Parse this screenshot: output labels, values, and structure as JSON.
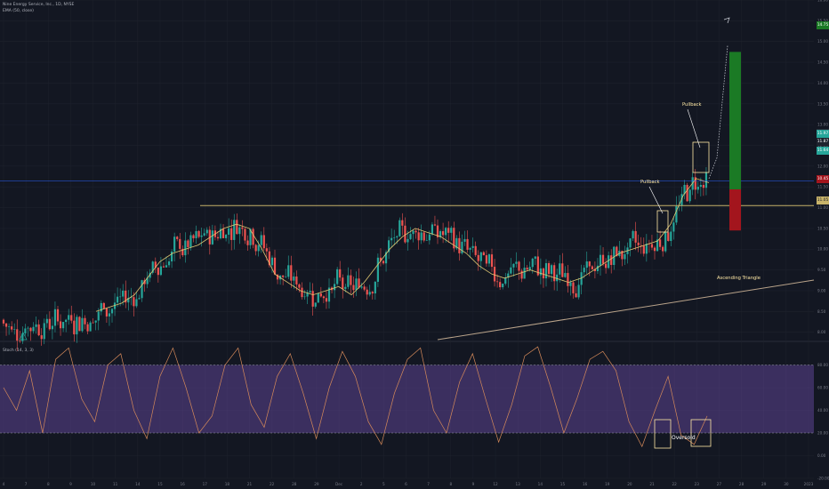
{
  "header": {
    "symbol_line": "Nine Energy Service, Inc., 1D, NYSE",
    "indicator_line": "EMA (50, close)",
    "osc_line": "Stoch (14, 3, 3)"
  },
  "price_tags": {
    "price_label": "Price",
    "target": "14.75",
    "last": "11.97",
    "open": "11.87",
    "current": "11.64",
    "stop": "10.45",
    "level": "11.05"
  },
  "colors": {
    "background": "#131722",
    "grid": "#1e222d",
    "up_candle": "#26a69a",
    "down_candle": "#ef5350",
    "ema": "#e0c872",
    "resistance": "#c8b36a",
    "support": "#b9a38a",
    "stoch_line": "#d68a5a",
    "stoch_band": "#7e57c2",
    "current_price_line": "#2962ff",
    "target_zone": "#1b7a25",
    "stop_zone": "#a3151d",
    "annotation": "#ffe9a6"
  },
  "annotations": {
    "pullback_1": "Pullback",
    "pullback_2": "Pullback",
    "triangle": "Ascending Triangle",
    "oversold": "Oversold"
  },
  "chart_data": [
    {
      "type": "candlestick",
      "title": "Nine Energy Service, Inc., 1D, NYSE",
      "ylim": [
        7.8,
        16.0
      ],
      "y_ticks": [
        "16.00",
        "15.50",
        "15.00",
        "14.50",
        "14.00",
        "13.50",
        "13.00",
        "12.50",
        "12.00",
        "11.50",
        "11.00",
        "10.50",
        "10.00",
        "9.50",
        "9.00",
        "8.50",
        "8.00"
      ],
      "x_ticks": [
        "4",
        "7",
        "8",
        "9",
        "10",
        "11",
        "14",
        "15",
        "16",
        "17",
        "18",
        "21",
        "22",
        "28",
        "29",
        "Dec",
        "2",
        "5",
        "6",
        "7",
        "8",
        "9",
        "12",
        "13",
        "14",
        "15",
        "16",
        "19",
        "20",
        "21",
        "22",
        "23",
        "27",
        "28",
        "29",
        "30",
        "2023"
      ],
      "series": [
        {
          "name": "EMA (50, close)",
          "values": [
            8.5,
            8.6,
            8.7,
            8.9,
            9.3,
            9.7,
            9.9,
            10.0,
            10.1,
            10.3,
            10.5,
            10.6,
            10.5,
            10.0,
            9.4,
            9.2,
            9.0,
            8.9,
            9.0,
            9.1,
            8.9,
            9.2,
            9.6,
            10.0,
            10.3,
            10.5,
            10.4,
            10.3,
            10.1,
            9.9,
            9.6,
            9.4,
            9.3,
            9.4,
            9.5,
            9.4,
            9.3,
            9.2,
            9.3,
            9.5,
            9.7,
            9.9,
            10.0,
            10.1,
            10.2,
            10.6,
            11.3,
            11.7,
            11.6
          ]
        }
      ],
      "levels": {
        "resistance": 11.05,
        "current_price": 11.64
      },
      "annotations": [
        "Pullback",
        "Pullback",
        "Ascending Triangle"
      ]
    },
    {
      "type": "line",
      "title": "Stoch (14, 3, 3)",
      "ylim": [
        -20,
        100
      ],
      "y_ticks": [
        "80.00",
        "60.00",
        "40.00",
        "20.00",
        "0.00",
        "-20.00"
      ],
      "bands": [
        20,
        80
      ],
      "series": [
        {
          "name": "Stoch (14, 3, 3)",
          "values": [
            60,
            40,
            75,
            20,
            85,
            95,
            50,
            30,
            80,
            90,
            40,
            15,
            70,
            95,
            60,
            20,
            35,
            80,
            95,
            45,
            25,
            70,
            90,
            55,
            15,
            60,
            92,
            70,
            30,
            10,
            55,
            85,
            95,
            40,
            20,
            65,
            90,
            50,
            12,
            45,
            88,
            96,
            60,
            20,
            50,
            85,
            92,
            75,
            30,
            8,
            40,
            70,
            18,
            10,
            35
          ]
        }
      ],
      "annotations": [
        "Oversold"
      ]
    }
  ]
}
